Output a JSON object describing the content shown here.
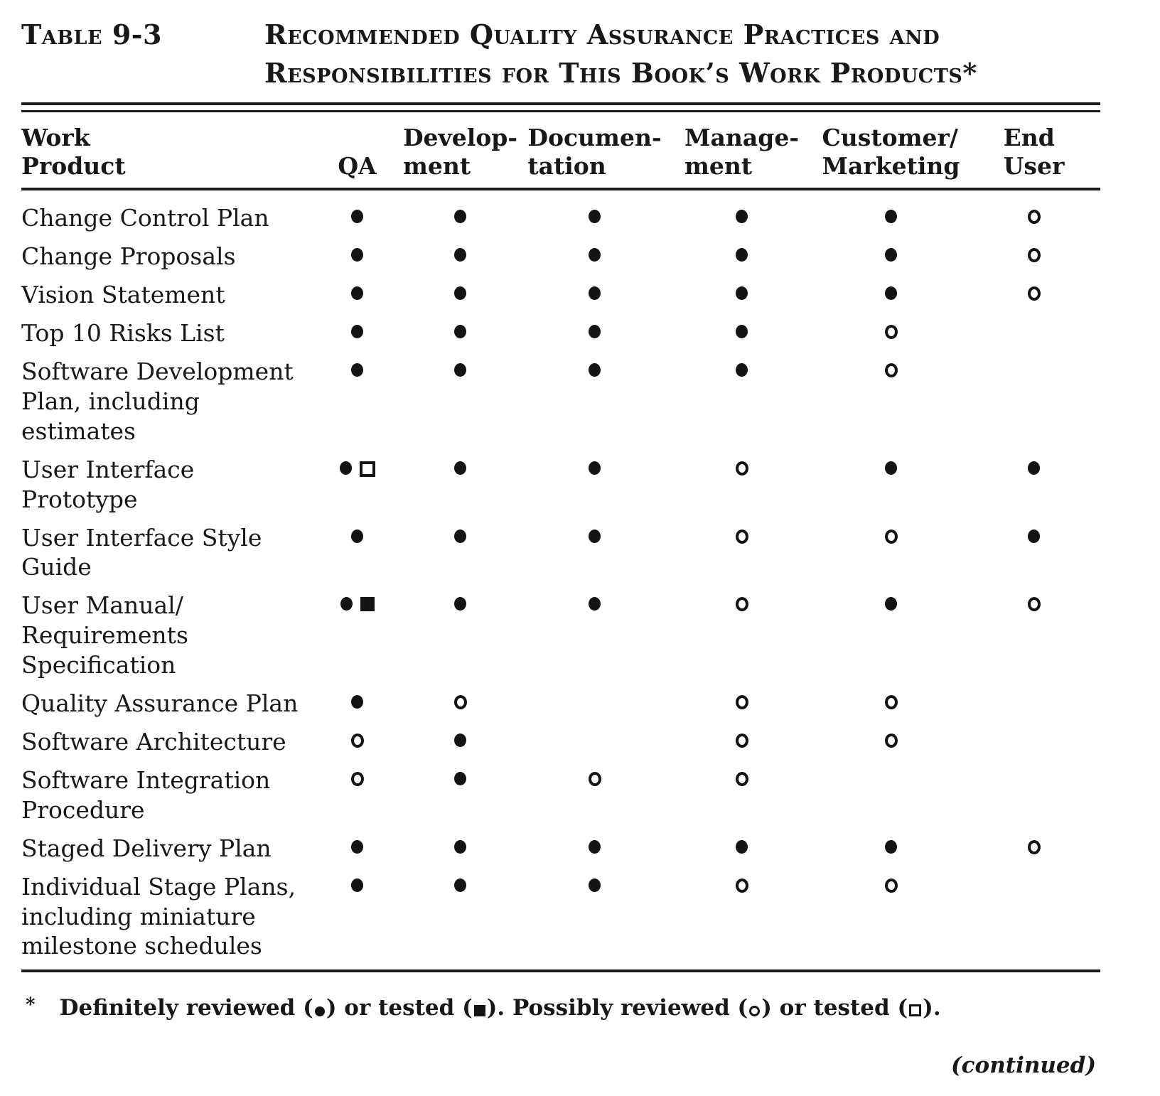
{
  "page": {
    "label": "Table 9-3",
    "title1": "Recommended Quality Assurance Practices and",
    "title2": "Responsibilities for This Book’s Work Products*",
    "continued": "(continued)"
  },
  "colors": {
    "ink": "#1c1c1c",
    "paper": "#ffffff"
  },
  "table": {
    "header": {
      "work_product_lines": [
        "Work",
        "Product"
      ],
      "columns": [
        {
          "lines": [
            "QA"
          ]
        },
        {
          "lines": [
            "Develop-",
            "ment"
          ]
        },
        {
          "lines": [
            "Documen-",
            "tation"
          ]
        },
        {
          "lines": [
            "Manage-",
            "ment"
          ]
        },
        {
          "lines": [
            "Customer/",
            "Marketing"
          ]
        },
        {
          "lines": [
            "End",
            "User"
          ]
        }
      ]
    },
    "rows": [
      {
        "product": [
          "Change Control Plan"
        ],
        "cells": [
          [
            "filled-circle"
          ],
          [
            "filled-circle"
          ],
          [
            "filled-circle"
          ],
          [
            "filled-circle"
          ],
          [
            "filled-circle"
          ],
          [
            "open-circle"
          ]
        ]
      },
      {
        "product": [
          "Change Proposals"
        ],
        "cells": [
          [
            "filled-circle"
          ],
          [
            "filled-circle"
          ],
          [
            "filled-circle"
          ],
          [
            "filled-circle"
          ],
          [
            "filled-circle"
          ],
          [
            "open-circle"
          ]
        ]
      },
      {
        "product": [
          "Vision Statement"
        ],
        "cells": [
          [
            "filled-circle"
          ],
          [
            "filled-circle"
          ],
          [
            "filled-circle"
          ],
          [
            "filled-circle"
          ],
          [
            "filled-circle"
          ],
          [
            "open-circle"
          ]
        ]
      },
      {
        "product": [
          "Top 10 Risks List"
        ],
        "cells": [
          [
            "filled-circle"
          ],
          [
            "filled-circle"
          ],
          [
            "filled-circle"
          ],
          [
            "filled-circle"
          ],
          [
            "open-circle"
          ],
          []
        ]
      },
      {
        "product": [
          "Software Development",
          "Plan, including",
          "estimates"
        ],
        "cells": [
          [
            "filled-circle"
          ],
          [
            "filled-circle"
          ],
          [
            "filled-circle"
          ],
          [
            "filled-circle"
          ],
          [
            "open-circle"
          ],
          []
        ]
      },
      {
        "product": [
          "User Interface",
          "Prototype"
        ],
        "cells": [
          [
            "filled-circle",
            "open-square"
          ],
          [
            "filled-circle"
          ],
          [
            "filled-circle"
          ],
          [
            "open-circle"
          ],
          [
            "filled-circle"
          ],
          [
            "filled-circle"
          ]
        ]
      },
      {
        "product": [
          "User Interface Style",
          "Guide"
        ],
        "cells": [
          [
            "filled-circle"
          ],
          [
            "filled-circle"
          ],
          [
            "filled-circle"
          ],
          [
            "open-circle"
          ],
          [
            "open-circle"
          ],
          [
            "filled-circle"
          ]
        ]
      },
      {
        "product": [
          "User Manual/",
          "Requirements",
          "Specification"
        ],
        "cells": [
          [
            "filled-circle",
            "filled-square"
          ],
          [
            "filled-circle"
          ],
          [
            "filled-circle"
          ],
          [
            "open-circle"
          ],
          [
            "filled-circle"
          ],
          [
            "open-circle"
          ]
        ]
      },
      {
        "product": [
          "Quality Assurance Plan"
        ],
        "cells": [
          [
            "filled-circle"
          ],
          [
            "open-circle"
          ],
          [],
          [
            "open-circle"
          ],
          [
            "open-circle"
          ],
          []
        ]
      },
      {
        "product": [
          "Software Architecture"
        ],
        "cells": [
          [
            "open-circle"
          ],
          [
            "filled-circle"
          ],
          [],
          [
            "open-circle"
          ],
          [
            "open-circle"
          ],
          []
        ]
      },
      {
        "product": [
          "Software Integration",
          "Procedure"
        ],
        "cells": [
          [
            "open-circle"
          ],
          [
            "filled-circle"
          ],
          [
            "open-circle"
          ],
          [
            "open-circle"
          ],
          [],
          []
        ]
      },
      {
        "product": [
          "Staged Delivery Plan"
        ],
        "cells": [
          [
            "filled-circle"
          ],
          [
            "filled-circle"
          ],
          [
            "filled-circle"
          ],
          [
            "filled-circle"
          ],
          [
            "filled-circle"
          ],
          [
            "open-circle"
          ]
        ]
      },
      {
        "product": [
          "Individual Stage Plans,",
          "including miniature",
          "milestone schedules"
        ],
        "cells": [
          [
            "filled-circle"
          ],
          [
            "filled-circle"
          ],
          [
            "filled-circle"
          ],
          [
            "open-circle"
          ],
          [
            "open-circle"
          ],
          []
        ]
      }
    ]
  },
  "footnote": {
    "marker": "*",
    "parts": [
      {
        "text": "Definitely reviewed ("
      },
      {
        "symbol": "filled-circle"
      },
      {
        "text": ") or tested ("
      },
      {
        "symbol": "filled-square"
      },
      {
        "text": "). Possibly reviewed ("
      },
      {
        "symbol": "open-circle"
      },
      {
        "text": ") or tested ("
      },
      {
        "symbol": "open-square"
      },
      {
        "text": ")."
      }
    ]
  }
}
